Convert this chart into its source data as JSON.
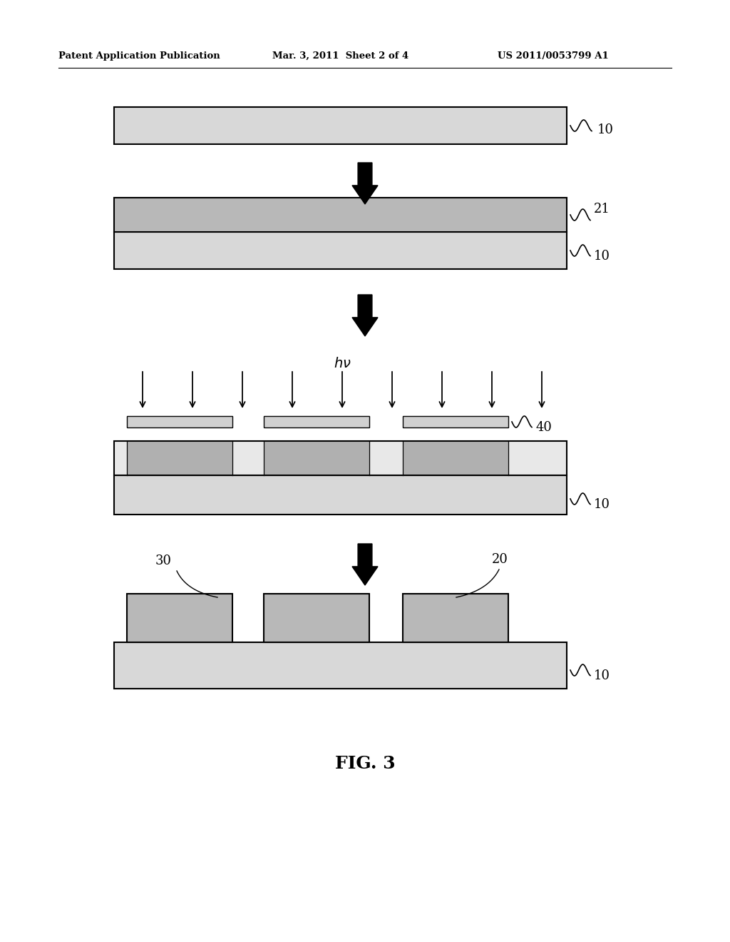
{
  "header_left": "Patent Application Publication",
  "header_mid": "Mar. 3, 2011  Sheet 2 of 4",
  "header_right": "US 2011/0053799 A1",
  "fig_caption": "FIG. 3",
  "background_color": "#ffffff",
  "substrate_color": "#d8d8d8",
  "layer21_color": "#b8b8b8",
  "mask_color": "#d0d0d0",
  "exposed_color": "#e8e8e8",
  "unexposed_color": "#b0b0b0",
  "block_color": "#b8b8b8"
}
